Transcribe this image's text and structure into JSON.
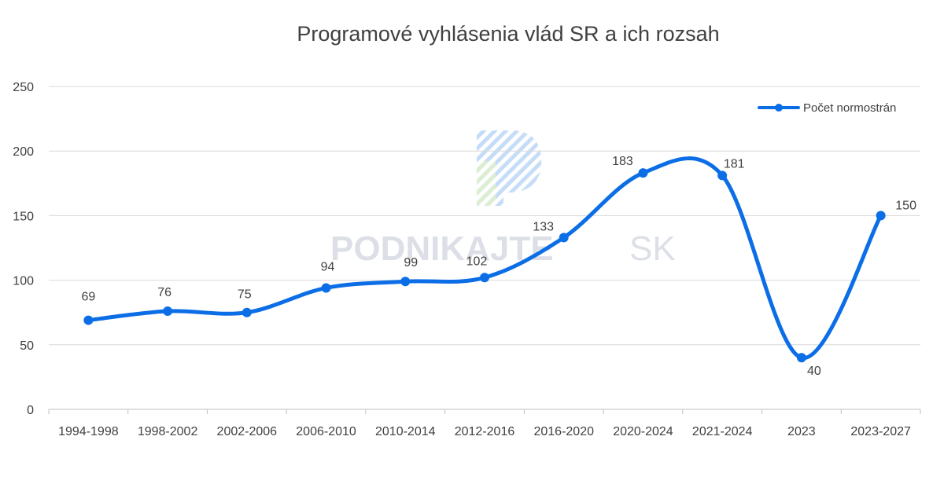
{
  "watermark": {
    "text": "PODNIKAJTE",
    "suffix": "SK"
  },
  "colors": {
    "series": "#0b6ee6",
    "grid": "#d9d9d9",
    "axis": "#bfbfbf",
    "text": "#404040"
  },
  "chart_data": {
    "type": "line",
    "title": "Programové vyhlásenia vlád SR a ich rozsah",
    "xlabel": "",
    "ylabel": "",
    "categories": [
      "1994-1998",
      "1998-2002",
      "2002-2006",
      "2006-2010",
      "2010-2014",
      "2012-2016",
      "2016-2020",
      "2020-2024",
      "2021-2024",
      "2023",
      "2023-2027"
    ],
    "series": [
      {
        "name": "Počet normostrán",
        "values": [
          69,
          76,
          75,
          94,
          99,
          102,
          133,
          183,
          181,
          40,
          150
        ]
      }
    ],
    "ylim": [
      0,
      250
    ],
    "yticks": [
      "0",
      "50",
      "100",
      "150",
      "200",
      "250"
    ],
    "grid": true,
    "smooth": true,
    "data_labels": [
      "69",
      "76",
      "75",
      "94",
      "99",
      "102",
      "133",
      "183",
      "181",
      "40",
      "150"
    ],
    "legend": {
      "position": "top-right"
    }
  }
}
